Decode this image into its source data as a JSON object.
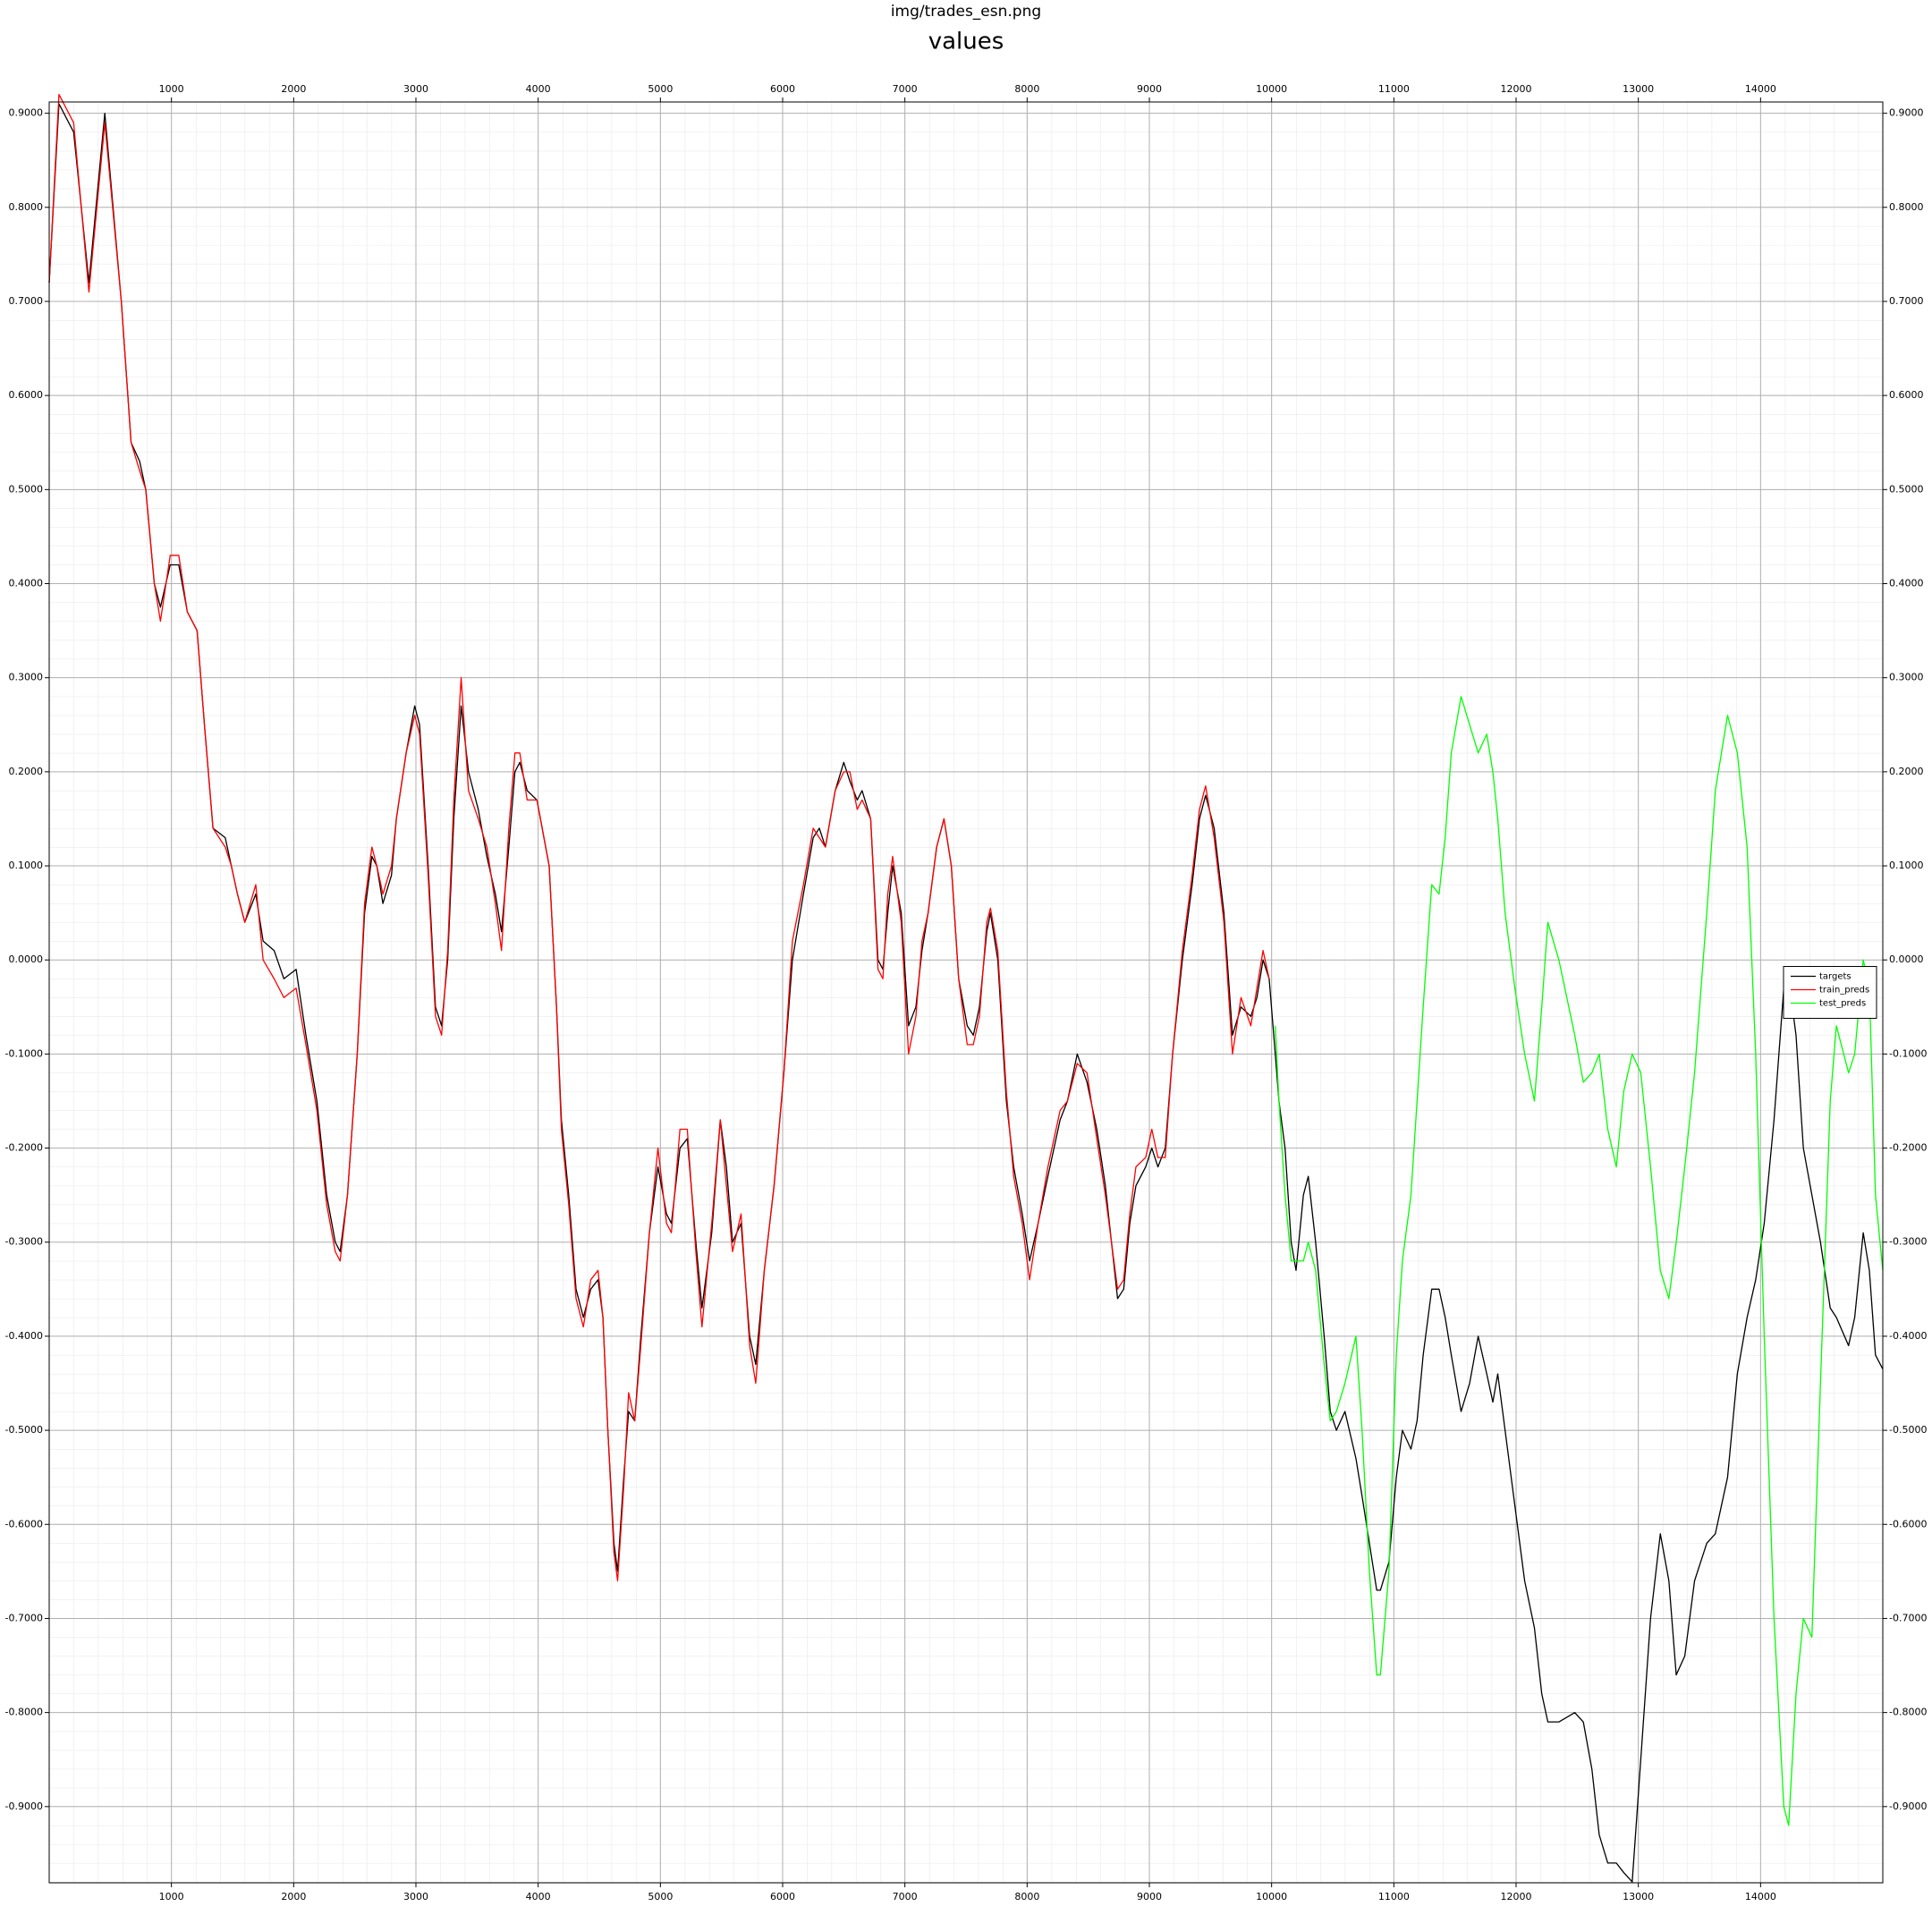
{
  "chart_data": {
    "type": "line",
    "figure_title": "img/trades_esn.png",
    "title": "values",
    "x": [
      0,
      80,
      200,
      325,
      455,
      590,
      670,
      740,
      790,
      860,
      910,
      990,
      1060,
      1130,
      1210,
      1270,
      1340,
      1440,
      1490,
      1540,
      1600,
      1690,
      1750,
      1840,
      1920,
      2020,
      2100,
      2190,
      2270,
      2340,
      2380,
      2440,
      2520,
      2580,
      2640,
      2680,
      2730,
      2800,
      2840,
      2920,
      2990,
      3030,
      3100,
      3160,
      3210,
      3260,
      3310,
      3370,
      3430,
      3510,
      3580,
      3650,
      3700,
      3760,
      3810,
      3850,
      3910,
      3990,
      4090,
      4150,
      4190,
      4250,
      4310,
      4370,
      4430,
      4490,
      4530,
      4570,
      4620,
      4650,
      4700,
      4740,
      4790,
      4840,
      4910,
      4980,
      5050,
      5090,
      5160,
      5220,
      5290,
      5340,
      5420,
      5490,
      5540,
      5590,
      5660,
      5730,
      5780,
      5850,
      5930,
      6010,
      6080,
      6170,
      6250,
      6300,
      6350,
      6430,
      6500,
      6550,
      6610,
      6650,
      6720,
      6780,
      6820,
      6860,
      6900,
      6970,
      7030,
      7090,
      7140,
      7190,
      7260,
      7320,
      7380,
      7440,
      7510,
      7560,
      7610,
      7670,
      7700,
      7760,
      7830,
      7890,
      7960,
      8020,
      8090,
      8170,
      8270,
      8330,
      8410,
      8490,
      8570,
      8640,
      8690,
      8740,
      8790,
      8840,
      8890,
      8970,
      9020,
      9070,
      9130,
      9190,
      9270,
      9350,
      9410,
      9460,
      9530,
      9610,
      9680,
      9750,
      9830,
      9880,
      9930,
      9980,
      10030,
      10060,
      10110,
      10160,
      10200,
      10260,
      10300,
      10360,
      10430,
      10480,
      10530,
      10600,
      10690,
      10740,
      10800,
      10860,
      10890,
      10960,
      11020,
      11070,
      11140,
      11190,
      11240,
      11310,
      11370,
      11420,
      11470,
      11550,
      11620,
      11690,
      11760,
      11810,
      11850,
      11910,
      11990,
      12070,
      12150,
      12210,
      12260,
      12350,
      12480,
      12550,
      12620,
      12680,
      12750,
      12820,
      12880,
      12950,
      13020,
      13100,
      13180,
      13250,
      13310,
      13380,
      13460,
      13560,
      13630,
      13730,
      13810,
      13890,
      13960,
      14030,
      14110,
      14190,
      14230,
      14290,
      14350,
      14420,
      14490,
      14570,
      14620,
      14720,
      14770,
      14840,
      14890,
      14940,
      15000
    ],
    "series": [
      {
        "name": "targets",
        "color": "#000000",
        "values": [
          0.72,
          0.91,
          0.88,
          0.72,
          0.9,
          0.7,
          0.55,
          0.53,
          0.5,
          0.4,
          0.375,
          0.42,
          0.42,
          0.37,
          0.35,
          0.25,
          0.14,
          0.13,
          0.1,
          0.07,
          0.04,
          0.07,
          0.02,
          0.01,
          -0.02,
          -0.01,
          -0.08,
          -0.15,
          -0.25,
          -0.3,
          -0.31,
          -0.25,
          -0.1,
          0.05,
          0.11,
          0.1,
          0.06,
          0.09,
          0.15,
          0.22,
          0.27,
          0.25,
          0.1,
          -0.05,
          -0.07,
          0.0,
          0.15,
          0.27,
          0.2,
          0.16,
          0.11,
          0.07,
          0.03,
          0.12,
          0.2,
          0.21,
          0.18,
          0.17,
          0.1,
          -0.05,
          -0.17,
          -0.25,
          -0.35,
          -0.38,
          -0.35,
          -0.34,
          -0.38,
          -0.5,
          -0.62,
          -0.65,
          -0.55,
          -0.48,
          -0.49,
          -0.4,
          -0.29,
          -0.22,
          -0.27,
          -0.28,
          -0.2,
          -0.19,
          -0.3,
          -0.37,
          -0.29,
          -0.17,
          -0.22,
          -0.3,
          -0.28,
          -0.4,
          -0.43,
          -0.33,
          -0.24,
          -0.12,
          0.0,
          0.07,
          0.13,
          0.14,
          0.12,
          0.18,
          0.21,
          0.19,
          0.17,
          0.18,
          0.15,
          0.0,
          -0.01,
          0.05,
          0.1,
          0.05,
          -0.07,
          -0.05,
          0.01,
          0.05,
          0.12,
          0.15,
          0.1,
          -0.02,
          -0.07,
          -0.08,
          -0.05,
          0.03,
          0.05,
          0.0,
          -0.15,
          -0.22,
          -0.27,
          -0.32,
          -0.28,
          -0.23,
          -0.17,
          -0.15,
          -0.1,
          -0.13,
          -0.18,
          -0.24,
          -0.3,
          -0.36,
          -0.35,
          -0.28,
          -0.24,
          -0.22,
          -0.2,
          -0.22,
          -0.2,
          -0.1,
          0.0,
          0.08,
          0.15,
          0.175,
          0.14,
          0.05,
          -0.08,
          -0.05,
          -0.06,
          -0.04,
          0.0,
          -0.02,
          -0.1,
          -0.15,
          -0.2,
          -0.3,
          -0.33,
          -0.25,
          -0.23,
          -0.3,
          -0.4,
          -0.48,
          -0.5,
          -0.48,
          -0.53,
          -0.57,
          -0.62,
          -0.67,
          -0.67,
          -0.64,
          -0.55,
          -0.5,
          -0.52,
          -0.49,
          -0.42,
          -0.35,
          -0.35,
          -0.38,
          -0.42,
          -0.48,
          -0.45,
          -0.4,
          -0.44,
          -0.47,
          -0.44,
          -0.5,
          -0.58,
          -0.66,
          -0.71,
          -0.78,
          -0.81,
          -0.81,
          -0.8,
          -0.81,
          -0.86,
          -0.93,
          -0.96,
          -0.96,
          -0.97,
          -0.98,
          -0.85,
          -0.7,
          -0.61,
          -0.66,
          -0.76,
          -0.74,
          -0.66,
          -0.62,
          -0.61,
          -0.55,
          -0.44,
          -0.38,
          -0.34,
          -0.28,
          -0.17,
          -0.03,
          -0.02,
          -0.08,
          -0.2,
          -0.25,
          -0.3,
          -0.37,
          -0.38,
          -0.41,
          -0.38,
          -0.29,
          -0.33,
          -0.42,
          -0.435
        ]
      },
      {
        "name": "train_preds",
        "color": "#ff0000",
        "values": [
          0.72,
          0.92,
          0.89,
          0.71,
          0.89,
          0.7,
          0.55,
          0.52,
          0.5,
          0.4,
          0.36,
          0.43,
          0.43,
          0.37,
          0.35,
          0.25,
          0.14,
          0.12,
          0.1,
          0.07,
          0.04,
          0.08,
          0.0,
          -0.02,
          -0.04,
          -0.03,
          -0.09,
          -0.16,
          -0.26,
          -0.31,
          -0.32,
          -0.25,
          -0.1,
          0.06,
          0.12,
          0.1,
          0.07,
          0.1,
          0.15,
          0.22,
          0.26,
          0.24,
          0.09,
          -0.06,
          -0.08,
          0.01,
          0.17,
          0.3,
          0.18,
          0.15,
          0.12,
          0.06,
          0.01,
          0.14,
          0.22,
          0.22,
          0.17,
          0.17,
          0.1,
          -0.05,
          -0.18,
          -0.26,
          -0.36,
          -0.39,
          -0.34,
          -0.33,
          -0.38,
          -0.5,
          -0.63,
          -0.66,
          -0.56,
          -0.46,
          -0.49,
          -0.41,
          -0.29,
          -0.2,
          -0.28,
          -0.29,
          -0.18,
          -0.18,
          -0.31,
          -0.39,
          -0.28,
          -0.17,
          -0.24,
          -0.31,
          -0.27,
          -0.41,
          -0.45,
          -0.33,
          -0.24,
          -0.12,
          0.02,
          0.08,
          0.14,
          0.13,
          0.12,
          0.18,
          0.2,
          0.2,
          0.16,
          0.17,
          0.15,
          -0.01,
          -0.02,
          0.07,
          0.11,
          0.04,
          -0.1,
          -0.06,
          0.02,
          0.05,
          0.12,
          0.15,
          0.1,
          -0.02,
          -0.09,
          -0.09,
          -0.06,
          0.04,
          0.055,
          0.01,
          -0.14,
          -0.23,
          -0.28,
          -0.34,
          -0.28,
          -0.22,
          -0.16,
          -0.15,
          -0.11,
          -0.12,
          -0.19,
          -0.25,
          -0.3,
          -0.35,
          -0.34,
          -0.27,
          -0.22,
          -0.21,
          -0.18,
          -0.21,
          -0.21,
          -0.1,
          0.01,
          0.09,
          0.16,
          0.185,
          0.13,
          0.04,
          -0.1,
          -0.04,
          -0.07,
          -0.03,
          0.01,
          -0.02,
          null,
          null,
          null,
          null,
          null,
          null,
          null,
          null,
          null,
          null,
          null,
          null,
          null,
          null,
          null,
          null,
          null,
          null,
          null,
          null,
          null,
          null,
          null,
          null,
          null,
          null,
          null,
          null,
          null,
          null,
          null,
          null,
          null,
          null,
          null,
          null,
          null,
          null,
          null,
          null,
          null,
          null,
          null,
          null,
          null,
          null,
          null,
          null,
          null,
          null,
          null,
          null,
          null,
          null,
          null,
          null,
          null,
          null,
          null,
          null,
          null,
          null,
          null,
          null,
          null,
          null,
          null,
          null,
          null,
          null,
          null,
          null,
          null,
          null,
          null,
          null,
          null
        ]
      },
      {
        "name": "test_preds",
        "color": "#00ff00",
        "values": [
          null,
          null,
          null,
          null,
          null,
          null,
          null,
          null,
          null,
          null,
          null,
          null,
          null,
          null,
          null,
          null,
          null,
          null,
          null,
          null,
          null,
          null,
          null,
          null,
          null,
          null,
          null,
          null,
          null,
          null,
          null,
          null,
          null,
          null,
          null,
          null,
          null,
          null,
          null,
          null,
          null,
          null,
          null,
          null,
          null,
          null,
          null,
          null,
          null,
          null,
          null,
          null,
          null,
          null,
          null,
          null,
          null,
          null,
          null,
          null,
          null,
          null,
          null,
          null,
          null,
          null,
          null,
          null,
          null,
          null,
          null,
          null,
          null,
          null,
          null,
          null,
          null,
          null,
          null,
          null,
          null,
          null,
          null,
          null,
          null,
          null,
          null,
          null,
          null,
          null,
          null,
          null,
          null,
          null,
          null,
          null,
          null,
          null,
          null,
          null,
          null,
          null,
          null,
          null,
          null,
          null,
          null,
          null,
          null,
          null,
          null,
          null,
          null,
          null,
          null,
          null,
          null,
          null,
          null,
          null,
          null,
          null,
          null,
          null,
          null,
          null,
          null,
          null,
          null,
          null,
          null,
          null,
          null,
          null,
          null,
          null,
          null,
          null,
          null,
          null,
          null,
          null,
          null,
          null,
          null,
          null,
          null,
          null,
          null,
          null,
          null,
          null,
          null,
          null,
          null,
          null,
          -0.07,
          -0.15,
          -0.25,
          -0.32,
          -0.32,
          -0.32,
          -0.3,
          -0.33,
          -0.43,
          -0.49,
          -0.48,
          -0.45,
          -0.4,
          -0.5,
          -0.65,
          -0.76,
          -0.76,
          -0.65,
          -0.42,
          -0.32,
          -0.25,
          -0.15,
          -0.05,
          0.08,
          0.07,
          0.13,
          0.22,
          0.28,
          0.25,
          0.22,
          0.24,
          0.2,
          0.15,
          0.05,
          -0.03,
          -0.1,
          -0.15,
          -0.05,
          0.04,
          0.0,
          -0.08,
          -0.13,
          -0.12,
          -0.1,
          -0.18,
          -0.22,
          -0.14,
          -0.1,
          -0.12,
          -0.22,
          -0.33,
          -0.36,
          -0.3,
          -0.22,
          -0.12,
          0.05,
          0.18,
          0.26,
          0.22,
          0.12,
          -0.1,
          -0.4,
          -0.7,
          -0.9,
          -0.92,
          -0.78,
          -0.7,
          -0.72,
          -0.45,
          -0.15,
          -0.07,
          -0.12,
          -0.1,
          0.0,
          -0.03,
          -0.25,
          -0.33
        ]
      }
    ],
    "xlim": [
      0,
      15000
    ],
    "ylim": [
      -0.981,
      0.912
    ],
    "xticks": [
      1000,
      2000,
      3000,
      4000,
      5000,
      6000,
      7000,
      8000,
      9000,
      10000,
      11000,
      12000,
      13000,
      14000
    ],
    "yticks": [
      {
        "value": 0.9,
        "label": "0.9000"
      },
      {
        "value": 0.8,
        "label": "0.8000"
      },
      {
        "value": 0.7,
        "label": "0.7000"
      },
      {
        "value": 0.6,
        "label": "0.6000"
      },
      {
        "value": 0.5,
        "label": "0.5000"
      },
      {
        "value": 0.4,
        "label": "0.4000"
      },
      {
        "value": 0.3,
        "label": "0.3000"
      },
      {
        "value": 0.2,
        "label": "0.2000"
      },
      {
        "value": 0.1,
        "label": "0.1000"
      },
      {
        "value": 0,
        "label": "0.0000"
      },
      {
        "value": -0.1,
        "label": "-0.1000"
      },
      {
        "value": -0.2,
        "label": "-0.2000"
      },
      {
        "value": -0.3,
        "label": "-0.3000"
      },
      {
        "value": -0.4,
        "label": "-0.4000"
      },
      {
        "value": -0.5,
        "label": "-0.5000"
      },
      {
        "value": -0.6,
        "label": "-0.6000"
      },
      {
        "value": -0.7,
        "label": "-0.7000"
      },
      {
        "value": -0.8,
        "label": "-0.8000"
      },
      {
        "value": -0.9,
        "label": "-0.9000"
      }
    ],
    "grid": true,
    "minor_grid": true,
    "legend": "center right"
  }
}
